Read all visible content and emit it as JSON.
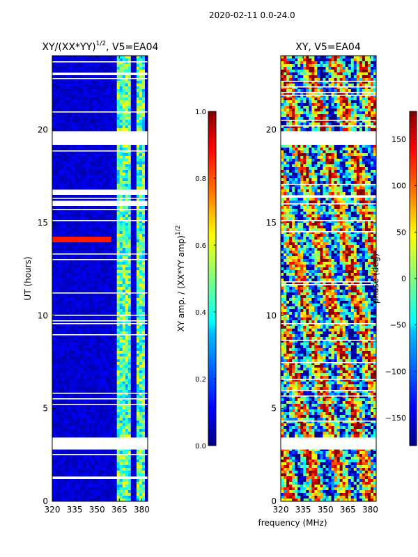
{
  "suptitle": "2020-02-11 0.0-24.0",
  "shared_xlabel": "frequency (MHz)",
  "chart_data": [
    {
      "type": "heatmap",
      "title_text": "XY/(XX*YY)",
      "title_exponent": "1/2",
      "title_suffix": ", V5=EA04",
      "xlabel": "",
      "ylabel": "UT (hours)",
      "xlim": [
        320,
        384
      ],
      "ylim": [
        0,
        24
      ],
      "x_ticks": [
        320,
        335,
        350,
        365,
        380
      ],
      "y_ticks": [
        0,
        5,
        10,
        15,
        20
      ],
      "colorbar": {
        "label_text": "XY amp. / (XX*YY amp)",
        "label_exponent": "1/2",
        "range": [
          0.0,
          1.0
        ],
        "ticks": [
          0.0,
          0.2,
          0.4,
          0.6,
          0.8,
          1.0
        ],
        "tick_labels": [
          "0.0",
          "0.2",
          "0.4",
          "0.6",
          "0.8",
          "1.0"
        ],
        "colormap": "jet"
      },
      "missing_ut_ranges": [
        [
          2.9,
          3.5
        ],
        [
          1.25,
          1.4
        ],
        [
          15.9,
          16.2
        ],
        [
          16.5,
          16.8
        ],
        [
          19.2,
          20.0
        ],
        [
          22.9,
          23.1
        ]
      ],
      "notes": "background ~0.05 (dark blue); bright channels ~0.3-0.6 near 363-372 and 376-382 MHz"
    },
    {
      "type": "heatmap",
      "title_text": "XY, V5=EA04",
      "xlabel": "",
      "ylabel": "",
      "xlim": [
        320,
        384
      ],
      "ylim": [
        0,
        24
      ],
      "x_ticks": [
        320,
        335,
        350,
        365,
        380
      ],
      "y_ticks": [
        0,
        5,
        10,
        15,
        20
      ],
      "colorbar": {
        "label_text": "phase (deg)",
        "range": [
          -180,
          180
        ],
        "ticks": [
          -150,
          -100,
          -50,
          0,
          50,
          100,
          150
        ],
        "tick_labels": [
          "−150",
          "−100",
          "−50",
          "0",
          "50",
          "100",
          "150"
        ],
        "colormap": "jet"
      },
      "missing_ut_ranges": [
        [
          2.9,
          3.5
        ],
        [
          19.2,
          20.0
        ],
        [
          16.3,
          16.5
        ]
      ],
      "notes": "phase spans full -180..180 range with noisy structure"
    }
  ],
  "colors": {
    "jet": [
      "#00007f",
      "#0000ff",
      "#007fff",
      "#00ffff",
      "#7fff7f",
      "#ffff00",
      "#ff7f00",
      "#ff0000",
      "#7f0000"
    ]
  }
}
